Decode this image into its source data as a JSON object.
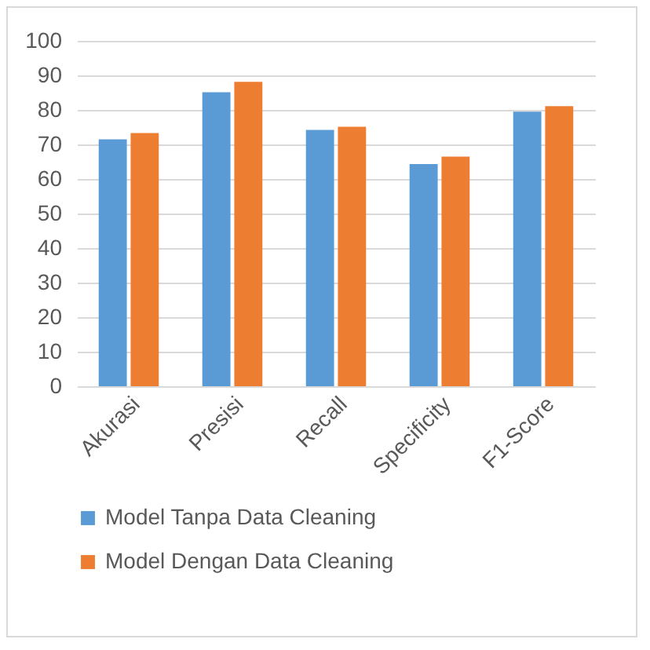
{
  "chart_data": {
    "type": "bar",
    "categories": [
      "Akurasi",
      "Presisi",
      "Recall",
      "Specificity",
      "F1-Score"
    ],
    "series": [
      {
        "name": "Model Tanpa Data Cleaning",
        "color": "#5b9bd5",
        "values": [
          71.5,
          85.1,
          74.2,
          64.3,
          79.5
        ]
      },
      {
        "name": "Model Dengan Data Cleaning",
        "color": "#ed7d31",
        "values": [
          73.3,
          88.1,
          75.1,
          66.5,
          81.1
        ]
      }
    ],
    "ylim": [
      0,
      100
    ],
    "yticks": [
      0,
      10,
      20,
      30,
      40,
      50,
      60,
      70,
      80,
      90,
      100
    ],
    "grid": "y",
    "legend": "bottom"
  }
}
